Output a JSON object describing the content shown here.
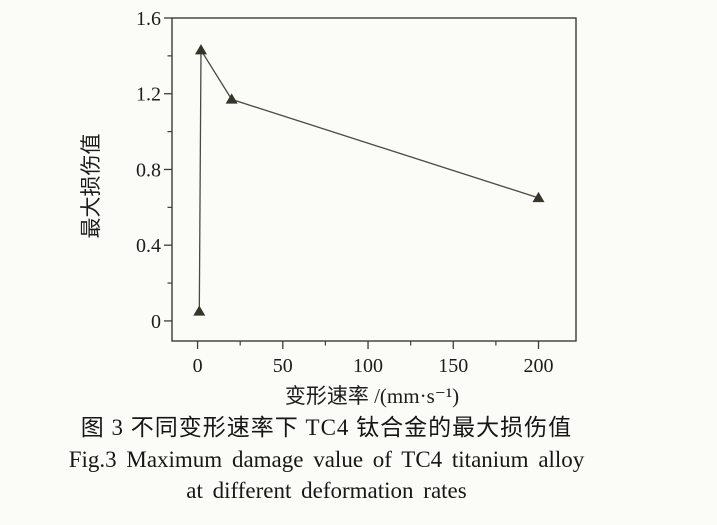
{
  "figure": {
    "caption_zh": "图 3  不同变形速率下 TC4 钛合金的最大损伤值",
    "caption_en_line1": "Fig.3  Maximum damage value of TC4 titanium alloy",
    "caption_en_line2": "at different deformation rates"
  },
  "chart_data": {
    "type": "line",
    "title": "",
    "xlabel": "变形速率 /(mm·s⁻¹)",
    "ylabel": "最大损伤值",
    "xlim": [
      -15,
      222
    ],
    "ylim": [
      -0.106,
      1.6
    ],
    "x_ticks": [
      0,
      50,
      100,
      150,
      200
    ],
    "x_tick_labels": [
      "0",
      "50",
      "100",
      "150",
      "200"
    ],
    "x_minor_step": 25,
    "y_ticks": [
      0,
      0.4,
      0.8,
      1.2,
      1.6
    ],
    "y_tick_labels": [
      "0",
      "0.4",
      "0.8",
      "1.2",
      "1.6"
    ],
    "y_minor_step": 0.2,
    "grid": false,
    "legend": false,
    "series": [
      {
        "marker": "filled-triangle-up",
        "x": [
          1,
          2,
          20,
          200
        ],
        "y": [
          0.05,
          1.43,
          1.17,
          0.65
        ]
      }
    ],
    "colors": {
      "line": "#4a4a40",
      "marker": "#36352a",
      "axis": "#3b3b38",
      "text": "#1c1c1c",
      "background": "#fbfbf8"
    }
  }
}
